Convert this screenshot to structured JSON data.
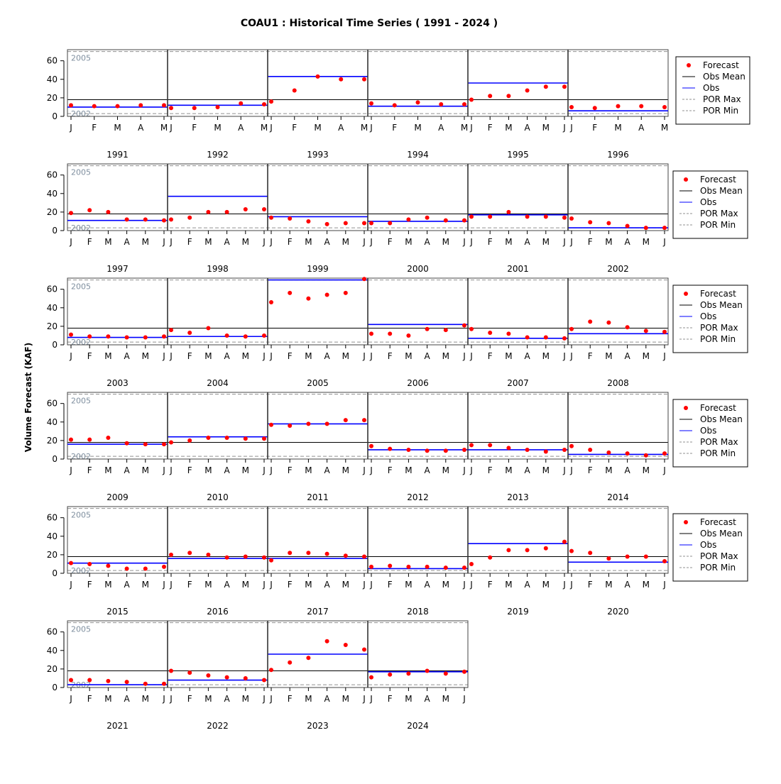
{
  "chart_data": {
    "type": "scatter",
    "title": "COAU1 : Historical Time Series ( 1991 - 2024 )",
    "ylabel": "Volume Forecast (KAF)",
    "ylim": [
      0,
      72
    ],
    "yticks": [
      0,
      20,
      40,
      60
    ],
    "obs_mean": 18,
    "por_max": 70,
    "por_min": 3,
    "por_max_year_label": "2005",
    "por_min_year_label": "2002",
    "legend": [
      "Forecast",
      "Obs Mean",
      "Obs",
      "POR Max",
      "POR Min"
    ],
    "colors": {
      "forecast": "#ff0000",
      "obs": "#0000ff",
      "obs_mean": "#000000",
      "por": "#808080"
    },
    "years": [
      {
        "year": "1991",
        "months": [
          "J",
          "F",
          "M",
          "A",
          "M"
        ],
        "obs": 10,
        "forecast": [
          12,
          11,
          11,
          12,
          12
        ]
      },
      {
        "year": "1992",
        "months": [
          "J",
          "F",
          "M",
          "A",
          "M"
        ],
        "obs": 12,
        "forecast": [
          9,
          9,
          10,
          14,
          13
        ]
      },
      {
        "year": "1993",
        "months": [
          "J",
          "F",
          "M",
          "A",
          "M"
        ],
        "obs": 43,
        "forecast": [
          16,
          28,
          43,
          40,
          40
        ]
      },
      {
        "year": "1994",
        "months": [
          "J",
          "F",
          "M",
          "A",
          "M"
        ],
        "obs": 11,
        "forecast": [
          14,
          12,
          15,
          13,
          13
        ]
      },
      {
        "year": "1995",
        "months": [
          "J",
          "F",
          "M",
          "A",
          "M",
          "J"
        ],
        "obs": 36,
        "forecast": [
          18,
          22,
          22,
          28,
          32,
          32
        ]
      },
      {
        "year": "1996",
        "months": [
          "J",
          "F",
          "M",
          "A",
          "M"
        ],
        "obs": 6,
        "forecast": [
          10,
          9,
          11,
          11,
          10
        ]
      },
      {
        "year": "1997",
        "months": [
          "J",
          "F",
          "M",
          "A",
          "M",
          "J"
        ],
        "obs": 11,
        "forecast": [
          19,
          22,
          20,
          12,
          12,
          11
        ]
      },
      {
        "year": "1998",
        "months": [
          "J",
          "F",
          "M",
          "A",
          "M",
          "J"
        ],
        "obs": 37,
        "forecast": [
          12,
          14,
          20,
          20,
          23,
          23
        ]
      },
      {
        "year": "1999",
        "months": [
          "J",
          "F",
          "M",
          "A",
          "M",
          "J"
        ],
        "obs": 15,
        "forecast": [
          14,
          13,
          10,
          7,
          8,
          8
        ]
      },
      {
        "year": "2000",
        "months": [
          "J",
          "F",
          "M",
          "A",
          "M",
          "J"
        ],
        "obs": 10,
        "forecast": [
          8,
          8,
          12,
          14,
          11,
          11
        ]
      },
      {
        "year": "2001",
        "months": [
          "J",
          "F",
          "M",
          "A",
          "M",
          "J"
        ],
        "obs": 17,
        "forecast": [
          15,
          15,
          20,
          15,
          15,
          14
        ]
      },
      {
        "year": "2002",
        "months": [
          "J",
          "F",
          "M",
          "A",
          "M",
          "J"
        ],
        "obs": 3,
        "forecast": [
          13,
          9,
          8,
          5,
          3,
          3
        ]
      },
      {
        "year": "2003",
        "months": [
          "J",
          "F",
          "M",
          "A",
          "M",
          "J"
        ],
        "obs": 8,
        "forecast": [
          11,
          9,
          9,
          8,
          8,
          9
        ]
      },
      {
        "year": "2004",
        "months": [
          "J",
          "F",
          "M",
          "A",
          "M",
          "J"
        ],
        "obs": 9,
        "forecast": [
          16,
          13,
          18,
          10,
          9,
          10
        ]
      },
      {
        "year": "2005",
        "months": [
          "J",
          "F",
          "M",
          "A",
          "M",
          "J"
        ],
        "obs": 70,
        "forecast": [
          46,
          56,
          50,
          54,
          56,
          71
        ]
      },
      {
        "year": "2006",
        "months": [
          "J",
          "F",
          "M",
          "A",
          "M",
          "J"
        ],
        "obs": 22,
        "forecast": [
          12,
          12,
          10,
          17,
          16,
          21
        ]
      },
      {
        "year": "2007",
        "months": [
          "J",
          "F",
          "M",
          "A",
          "M",
          "J"
        ],
        "obs": 7,
        "forecast": [
          17,
          13,
          12,
          8,
          8,
          7
        ]
      },
      {
        "year": "2008",
        "months": [
          "J",
          "F",
          "M",
          "A",
          "M",
          "J"
        ],
        "obs": 12,
        "forecast": [
          17,
          25,
          24,
          19,
          15,
          14
        ]
      },
      {
        "year": "2009",
        "months": [
          "J",
          "F",
          "M",
          "A",
          "M",
          "J"
        ],
        "obs": 16,
        "forecast": [
          21,
          21,
          23,
          17,
          16,
          16
        ]
      },
      {
        "year": "2010",
        "months": [
          "J",
          "F",
          "M",
          "A",
          "M",
          "J"
        ],
        "obs": 24,
        "forecast": [
          18,
          20,
          23,
          23,
          22,
          22
        ]
      },
      {
        "year": "2011",
        "months": [
          "J",
          "F",
          "M",
          "A",
          "M",
          "J"
        ],
        "obs": 38,
        "forecast": [
          37,
          36,
          38,
          38,
          42,
          42
        ]
      },
      {
        "year": "2012",
        "months": [
          "J",
          "F",
          "M",
          "A",
          "M",
          "J"
        ],
        "obs": 10,
        "forecast": [
          14,
          11,
          10,
          9,
          9,
          10
        ]
      },
      {
        "year": "2013",
        "months": [
          "J",
          "F",
          "M",
          "A",
          "M",
          "J"
        ],
        "obs": 10,
        "forecast": [
          15,
          15,
          12,
          10,
          8,
          10
        ]
      },
      {
        "year": "2014",
        "months": [
          "J",
          "F",
          "M",
          "A",
          "M",
          "J"
        ],
        "obs": 5,
        "forecast": [
          14,
          10,
          7,
          6,
          4,
          6
        ]
      },
      {
        "year": "2015",
        "months": [
          "J",
          "F",
          "M",
          "A",
          "M",
          "J"
        ],
        "obs": 11,
        "forecast": [
          11,
          10,
          8,
          5,
          5,
          7
        ]
      },
      {
        "year": "2016",
        "months": [
          "J",
          "F",
          "M",
          "A",
          "M",
          "J"
        ],
        "obs": 16,
        "forecast": [
          20,
          22,
          20,
          17,
          18,
          17
        ]
      },
      {
        "year": "2017",
        "months": [
          "J",
          "F",
          "M",
          "A",
          "M",
          "J"
        ],
        "obs": 16,
        "forecast": [
          14,
          22,
          22,
          21,
          19,
          18
        ]
      },
      {
        "year": "2018",
        "months": [
          "J",
          "F",
          "M",
          "A",
          "M",
          "J"
        ],
        "obs": 5,
        "forecast": [
          7,
          8,
          7,
          7,
          6,
          6
        ]
      },
      {
        "year": "2019",
        "months": [
          "J",
          "F",
          "M",
          "A",
          "M",
          "J"
        ],
        "obs": 32,
        "forecast": [
          10,
          17,
          25,
          25,
          27,
          34
        ]
      },
      {
        "year": "2020",
        "months": [
          "J",
          "F",
          "M",
          "A",
          "M",
          "J"
        ],
        "obs": 12,
        "forecast": [
          24,
          22,
          16,
          18,
          18,
          13
        ]
      },
      {
        "year": "2021",
        "months": [
          "J",
          "F",
          "M",
          "A",
          "M",
          "J"
        ],
        "obs": 3,
        "forecast": [
          8,
          8,
          7,
          6,
          4,
          4
        ]
      },
      {
        "year": "2022",
        "months": [
          "J",
          "F",
          "M",
          "A",
          "M",
          "J"
        ],
        "obs": 8,
        "forecast": [
          18,
          16,
          13,
          11,
          10,
          8
        ]
      },
      {
        "year": "2023",
        "months": [
          "J",
          "F",
          "M",
          "A",
          "M",
          "J"
        ],
        "obs": 36,
        "forecast": [
          19,
          27,
          32,
          50,
          46,
          41
        ]
      },
      {
        "year": "2024",
        "months": [
          "J",
          "F",
          "M",
          "A",
          "M",
          "J"
        ],
        "obs": 17,
        "forecast": [
          11,
          14,
          15,
          18,
          15,
          17
        ]
      }
    ]
  }
}
